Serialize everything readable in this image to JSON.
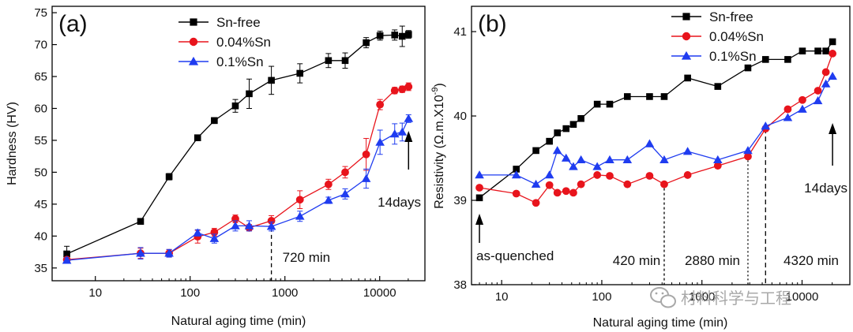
{
  "chart_data": [
    {
      "type": "line",
      "panel_label": "(a)",
      "xlabel": "Natural aging time (min)",
      "ylabel": "Hardness (HV)",
      "xscale": "log",
      "xlim": [
        3.5,
        30000
      ],
      "ylim": [
        33,
        76
      ],
      "xticks": [
        10,
        100,
        1000,
        10000
      ],
      "xtick_labels": [
        "10",
        "100",
        "1000",
        "10000"
      ],
      "yticks": [
        35,
        40,
        45,
        50,
        55,
        60,
        65,
        70,
        75
      ],
      "ytick_labels": [
        "35",
        "40",
        "45",
        "50",
        "55",
        "60",
        "65",
        "70",
        "75"
      ],
      "legend_position": "top-center",
      "series": [
        {
          "name": "Sn-free",
          "color": "#000000",
          "marker": "square",
          "x": [
            5,
            30,
            60,
            120,
            180,
            300,
            420,
            720,
            1440,
            2880,
            4320,
            7200,
            10080,
            14400,
            17280,
            20160
          ],
          "y": [
            37.2,
            42.3,
            49.3,
            55.4,
            58.1,
            60.4,
            62.3,
            64.4,
            65.5,
            67.5,
            67.5,
            70.3,
            71.4,
            71.5,
            71.3,
            71.6
          ],
          "err": [
            1.2,
            0.4,
            0.5,
            0.4,
            0.4,
            1.0,
            2.3,
            2.2,
            1.5,
            1.1,
            1.2,
            0.8,
            0.7,
            0.8,
            1.6,
            0.6
          ]
        },
        {
          "name": "0.04%Sn",
          "color": "#e8141c",
          "marker": "circle",
          "x": [
            5,
            30,
            60,
            120,
            180,
            300,
            420,
            720,
            1440,
            2880,
            4320,
            7200,
            10080,
            14400,
            17280,
            20160
          ],
          "y": [
            36.3,
            37.3,
            37.3,
            39.9,
            40.6,
            42.7,
            41.3,
            42.4,
            45.7,
            48.1,
            50.0,
            52.8,
            60.6,
            62.8,
            63.0,
            63.4
          ],
          "err": [
            0.4,
            0.8,
            0.6,
            1.0,
            0.6,
            0.6,
            0.5,
            0.8,
            1.4,
            0.8,
            0.9,
            2.5,
            0.8,
            0.5,
            0.5,
            0.6
          ]
        },
        {
          "name": "0.1%Sn",
          "color": "#1f3cf0",
          "marker": "triangle",
          "x": [
            5,
            30,
            60,
            120,
            180,
            300,
            420,
            720,
            1440,
            2880,
            4320,
            7200,
            10080,
            14400,
            17280,
            20160
          ],
          "y": [
            36.2,
            37.3,
            37.3,
            40.5,
            39.6,
            41.6,
            41.6,
            41.5,
            43.1,
            45.6,
            46.6,
            49.0,
            54.7,
            56.0,
            56.3,
            58.4
          ],
          "err": [
            0.4,
            0.9,
            0.6,
            0.5,
            0.7,
            0.8,
            0.8,
            0.7,
            0.8,
            0.5,
            0.8,
            1.5,
            1.9,
            1.6,
            1.4,
            0.6
          ]
        }
      ],
      "annotations": {
        "min_label": "720 min",
        "min_line_x": 720,
        "days_label": "14days",
        "days_arrow_x": 20160
      }
    },
    {
      "type": "line",
      "panel_label": "(b)",
      "xlabel": "Natural aging time (min)",
      "ylabel": "Resistivity (Ω.m.X10",
      "ylabel_exponent": "-9",
      "ylabel_suffix": ")",
      "xscale": "log",
      "xlim": [
        5,
        30000
      ],
      "ylim": [
        38,
        41.3
      ],
      "xticks": [
        10,
        100,
        1000,
        10000
      ],
      "xtick_labels": [
        "10",
        "100",
        "1000",
        "10000"
      ],
      "yticks": [
        38,
        39,
        40,
        41
      ],
      "ytick_labels": [
        "38",
        "39",
        "40",
        "41"
      ],
      "legend_position": "top-right",
      "series": [
        {
          "name": "Sn-free",
          "color": "#000000",
          "marker": "square",
          "x": [
            6,
            14,
            22,
            30,
            36,
            44,
            52,
            62,
            90,
            120,
            180,
            300,
            420,
            720,
            1440,
            2880,
            4320,
            7200,
            10080,
            14400,
            17280,
            20160
          ],
          "y": [
            39.03,
            39.37,
            39.59,
            39.7,
            39.8,
            39.85,
            39.9,
            39.97,
            40.14,
            40.14,
            40.23,
            40.23,
            40.23,
            40.45,
            40.35,
            40.57,
            40.67,
            40.67,
            40.77,
            40.77,
            40.77,
            40.88
          ]
        },
        {
          "name": "0.04%Sn",
          "color": "#e8141c",
          "marker": "circle",
          "x": [
            6,
            14,
            22,
            30,
            36,
            44,
            52,
            62,
            90,
            120,
            180,
            300,
            420,
            720,
            1440,
            2880,
            4320,
            7200,
            10080,
            14400,
            17280,
            20160
          ],
          "y": [
            39.15,
            39.08,
            38.97,
            39.18,
            39.09,
            39.11,
            39.09,
            39.19,
            39.3,
            39.29,
            39.19,
            39.29,
            39.19,
            39.3,
            39.41,
            39.52,
            39.85,
            40.08,
            40.19,
            40.3,
            40.52,
            40.74
          ]
        },
        {
          "name": "0.1%Sn",
          "color": "#1f3cf0",
          "marker": "triangle",
          "x": [
            6,
            14,
            22,
            30,
            36,
            44,
            52,
            62,
            90,
            120,
            180,
            300,
            420,
            720,
            1440,
            2880,
            4320,
            7200,
            10080,
            14400,
            17280,
            20160
          ],
          "y": [
            39.3,
            39.3,
            39.19,
            39.3,
            39.59,
            39.5,
            39.4,
            39.48,
            39.4,
            39.48,
            39.48,
            39.67,
            39.48,
            39.58,
            39.48,
            39.59,
            39.88,
            39.98,
            40.08,
            40.18,
            40.38,
            40.47
          ]
        }
      ],
      "annotations": {
        "line_x": [
          420,
          2880,
          4320
        ],
        "min_labels": [
          "420 min",
          "2880 min",
          "4320 min"
        ],
        "asq_label": "as-quenched",
        "asq_arrow_x": 6,
        "days_label": "14days",
        "days_arrow_x": 20160
      }
    }
  ],
  "watermark": {
    "text": "材料科学与工程",
    "icon": "wechat-icon"
  }
}
